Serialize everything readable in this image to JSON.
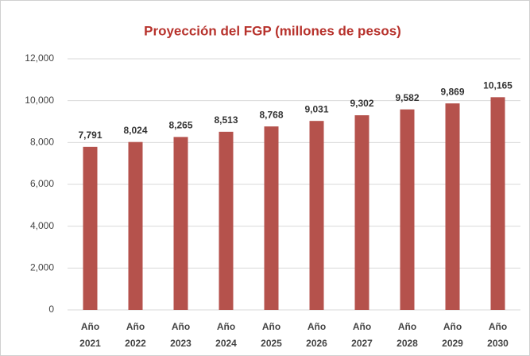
{
  "chart_data": {
    "type": "bar",
    "title": "Proyección del FGP (millones de pesos)",
    "categories": [
      "Año 2021",
      "Año 2022",
      "Año 2023",
      "Año 2024",
      "Año 2025",
      "Año 2026",
      "Año 2027",
      "Año 2028",
      "Año 2029",
      "Año 2030"
    ],
    "values": [
      7791,
      8024,
      8265,
      8513,
      8768,
      9031,
      9302,
      9582,
      9869,
      10165
    ],
    "value_labels": [
      "7,791",
      "8,024",
      "8,265",
      "8,513",
      "8,768",
      "9,031",
      "9,302",
      "9,582",
      "9,869",
      "10,165"
    ],
    "color": "#b5524c",
    "ylim": [
      0,
      12000
    ],
    "yticks": [
      0,
      {
        "value": 2000,
        "label": "2,000"
      },
      {
        "value": 4000,
        "label": "4,000"
      },
      {
        "value": 6000,
        "label": "6,000"
      },
      {
        "value": 8000,
        "label": "8,000"
      },
      {
        "value": 10000,
        "label": "10,000"
      },
      {
        "value": 12000,
        "label": "12,000"
      }
    ],
    "grid": true
  }
}
